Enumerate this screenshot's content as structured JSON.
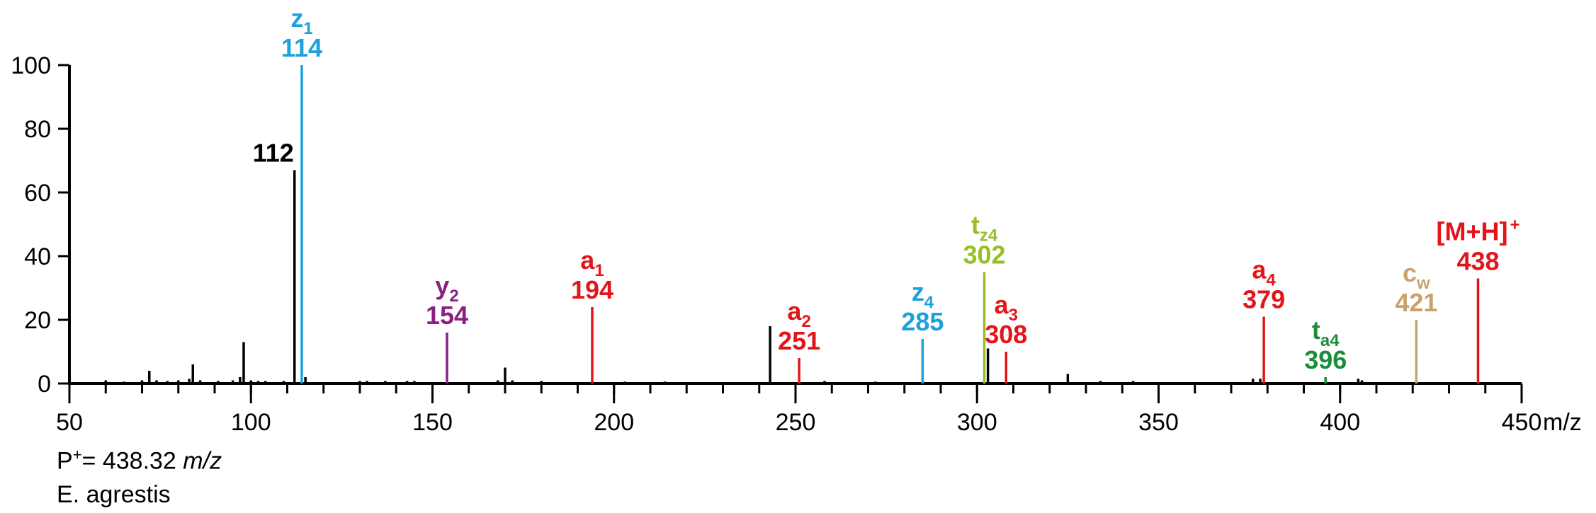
{
  "chart_data": {
    "type": "bar",
    "x_unit_label": "m/z",
    "xlim": [
      50,
      450
    ],
    "ylim": [
      0,
      100
    ],
    "x_ticks": [
      "50",
      "100",
      "150",
      "200",
      "250",
      "300",
      "350",
      "400",
      "450"
    ],
    "x_tick_values": [
      50,
      100,
      150,
      200,
      250,
      300,
      350,
      400,
      450
    ],
    "y_ticks": [
      "0",
      "20",
      "40",
      "60",
      "80",
      "100"
    ],
    "y_tick_values": [
      0,
      20,
      40,
      60,
      80,
      100
    ],
    "grid": false,
    "colors": {
      "black": "#000000",
      "red": "#e3151b",
      "blue": "#1ba1dc",
      "purple": "#8b1f82",
      "lime": "#97bf28",
      "green": "#1a8c3c",
      "tan": "#c9a26b"
    },
    "labeled_peaks": [
      {
        "mz": 112,
        "intensity": 67,
        "ion": "",
        "sub": "",
        "sup": "",
        "value": "112",
        "color": "black"
      },
      {
        "mz": 114,
        "intensity": 100,
        "ion": "z",
        "sub": "1",
        "sup": "",
        "value": "114",
        "color": "blue"
      },
      {
        "mz": 154,
        "intensity": 16,
        "ion": "y",
        "sub": "2",
        "sup": "",
        "value": "154",
        "color": "purple"
      },
      {
        "mz": 194,
        "intensity": 24,
        "ion": "a",
        "sub": "1",
        "sup": "",
        "value": "194",
        "color": "red"
      },
      {
        "mz": 251,
        "intensity": 8,
        "ion": "a",
        "sub": "2",
        "sup": "",
        "value": "251",
        "color": "red"
      },
      {
        "mz": 285,
        "intensity": 14,
        "ion": "z",
        "sub": "4",
        "sup": "",
        "value": "285",
        "color": "blue"
      },
      {
        "mz": 302,
        "intensity": 35,
        "ion": "t",
        "sub": "z4",
        "sup": "",
        "value": "302",
        "color": "lime"
      },
      {
        "mz": 308,
        "intensity": 10,
        "ion": "a",
        "sub": "3",
        "sup": "",
        "value": "308",
        "color": "red"
      },
      {
        "mz": 379,
        "intensity": 21,
        "ion": "a",
        "sub": "4",
        "sup": "",
        "value": "379",
        "color": "red"
      },
      {
        "mz": 396,
        "intensity": 2,
        "ion": "t",
        "sub": "a4",
        "sup": "",
        "value": "396",
        "color": "green"
      },
      {
        "mz": 421,
        "intensity": 20,
        "ion": "c",
        "sub": "w",
        "sup": "",
        "value": "421",
        "color": "tan"
      },
      {
        "mz": 438,
        "intensity": 33,
        "ion": "[M+H]",
        "sub": "",
        "sup": "+",
        "value": "438",
        "color": "red"
      }
    ],
    "minor_peaks": [
      {
        "mz": 60,
        "intensity": 1
      },
      {
        "mz": 65,
        "intensity": 0.6
      },
      {
        "mz": 70,
        "intensity": 1
      },
      {
        "mz": 72,
        "intensity": 4
      },
      {
        "mz": 74,
        "intensity": 1
      },
      {
        "mz": 77,
        "intensity": 0.8
      },
      {
        "mz": 80,
        "intensity": 1
      },
      {
        "mz": 83,
        "intensity": 1.5
      },
      {
        "mz": 84,
        "intensity": 6
      },
      {
        "mz": 86,
        "intensity": 1
      },
      {
        "mz": 91,
        "intensity": 0.8
      },
      {
        "mz": 95,
        "intensity": 1
      },
      {
        "mz": 97,
        "intensity": 2
      },
      {
        "mz": 98,
        "intensity": 13
      },
      {
        "mz": 100,
        "intensity": 1
      },
      {
        "mz": 102,
        "intensity": 0.8
      },
      {
        "mz": 104,
        "intensity": 0.8
      },
      {
        "mz": 109,
        "intensity": 0.8
      },
      {
        "mz": 115,
        "intensity": 2
      },
      {
        "mz": 130,
        "intensity": 0.8
      },
      {
        "mz": 132,
        "intensity": 0.8
      },
      {
        "mz": 137,
        "intensity": 0.8
      },
      {
        "mz": 143,
        "intensity": 0.8
      },
      {
        "mz": 145,
        "intensity": 0.8
      },
      {
        "mz": 168,
        "intensity": 1
      },
      {
        "mz": 170,
        "intensity": 5
      },
      {
        "mz": 172,
        "intensity": 1
      },
      {
        "mz": 180,
        "intensity": 0.8
      },
      {
        "mz": 203,
        "intensity": 0.6
      },
      {
        "mz": 214,
        "intensity": 0.6
      },
      {
        "mz": 243,
        "intensity": 18
      },
      {
        "mz": 258,
        "intensity": 0.8
      },
      {
        "mz": 272,
        "intensity": 0.6
      },
      {
        "mz": 303,
        "intensity": 11
      },
      {
        "mz": 325,
        "intensity": 3
      },
      {
        "mz": 334,
        "intensity": 0.8
      },
      {
        "mz": 343,
        "intensity": 0.8
      },
      {
        "mz": 376,
        "intensity": 1.5
      },
      {
        "mz": 378,
        "intensity": 1.5
      },
      {
        "mz": 405,
        "intensity": 1.5
      },
      {
        "mz": 406,
        "intensity": 1
      }
    ]
  },
  "footer": {
    "precursor_prefix": "P",
    "precursor_sup": "+",
    "precursor_value": "= 438.32 ",
    "precursor_unit": "m/z",
    "species": "E. agrestis"
  }
}
